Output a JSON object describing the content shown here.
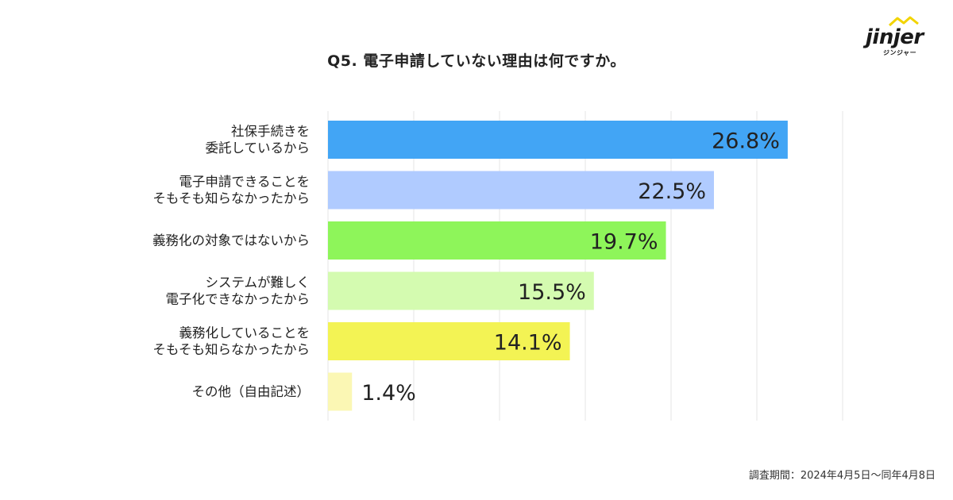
{
  "title": "Q5. 電子申請していない理由は何ですか。",
  "logo": {
    "word": "jinjer",
    "sub": "ジンジャー"
  },
  "footnote": "調査期間：2024年4月5日〜同年4月8日",
  "chart_data": {
    "type": "bar",
    "orientation": "horizontal",
    "title": "Q5. 電子申請していない理由は何ですか。",
    "xlabel": "",
    "ylabel": "",
    "xlim": [
      0,
      30
    ],
    "grid": true,
    "value_suffix": "%",
    "categories": [
      "社保手続きを\n委託しているから",
      "電子申請できることを\nそもそも知らなかったから",
      "義務化の対象ではないから",
      "システムが難しく\n電子化できなかったから",
      "義務化していることを\nそもそも知らなかったから",
      "その他（自由記述）"
    ],
    "values": [
      26.8,
      22.5,
      19.7,
      15.5,
      14.1,
      1.4
    ],
    "data_labels": [
      "26.8%",
      "22.5%",
      "19.7%",
      "15.5%",
      "14.1%",
      "1.4%"
    ],
    "colors": [
      "#42a5f5",
      "#b0cbff",
      "#8ef55a",
      "#d4fbb0",
      "#f3f354",
      "#fbf7b4"
    ]
  }
}
